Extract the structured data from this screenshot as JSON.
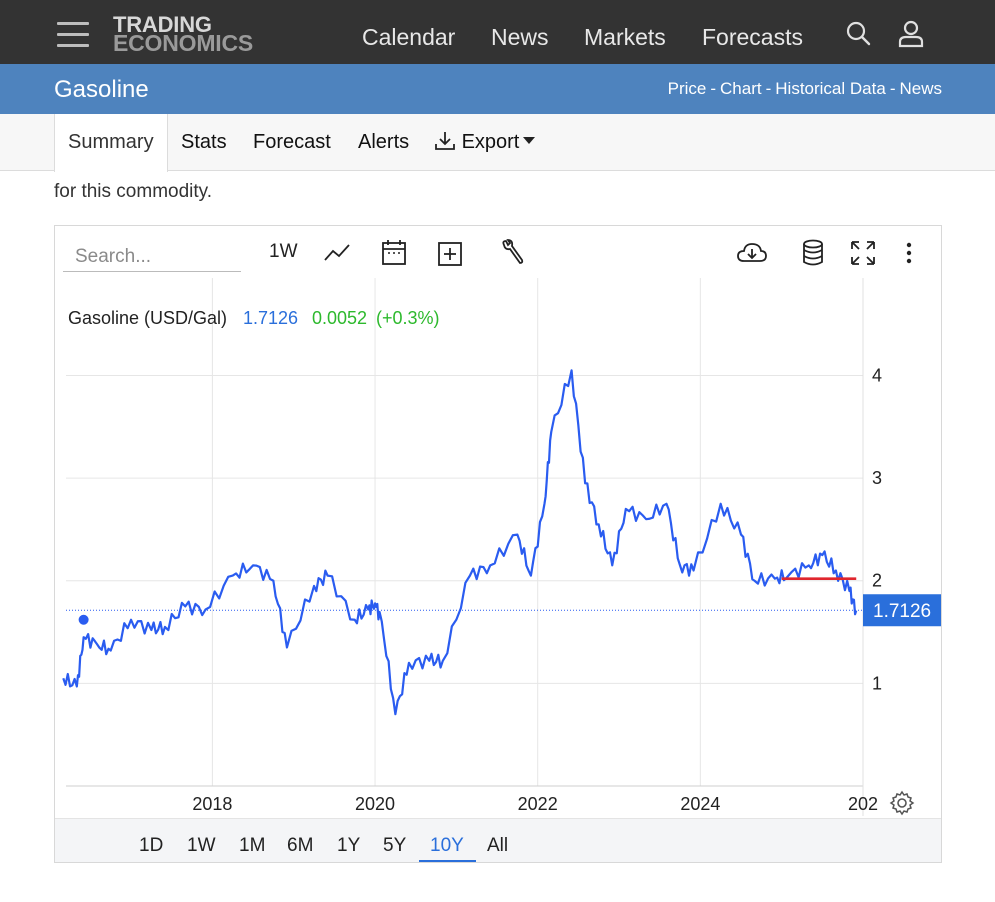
{
  "nav": {
    "logo_line1": "TRADING",
    "logo_line2": "ECONOMICS",
    "links": [
      "Calendar",
      "News",
      "Markets",
      "Forecasts"
    ],
    "icons": [
      "search-icon",
      "user-icon",
      "hamburger-menu-icon"
    ]
  },
  "header": {
    "title": "Gasoline",
    "links": [
      "Price",
      "Chart",
      "Historical Data",
      "News"
    ],
    "separator": "-"
  },
  "tabs": {
    "items": [
      "Summary",
      "Stats",
      "Forecast",
      "Alerts"
    ],
    "active": "Summary",
    "export_label": "Export"
  },
  "intro_text": "for this commodity.",
  "toolbar": {
    "search_placeholder": "Search...",
    "interval_label": "1W",
    "icons": [
      "line-chart-icon",
      "calendar-icon",
      "add-compare-icon",
      "wrench-icon",
      "cloud-download-icon",
      "database-icon",
      "fullscreen-icon",
      "more-vert-icon"
    ]
  },
  "legend": {
    "name": "Gasoline (USD/Gal)",
    "price": "1.7126",
    "change": "0.0052",
    "pct": "(+0.3%)",
    "price_color": "#2a6fdb",
    "change_color": "#2db92d"
  },
  "last_price_label": "1.7126",
  "ranges": {
    "items": [
      "1D",
      "1W",
      "1M",
      "6M",
      "1Y",
      "5Y",
      "10Y",
      "All"
    ],
    "active": "10Y"
  },
  "chart_data": {
    "type": "line",
    "series": [
      {
        "name": "Gasoline (USD/Gal)",
        "color": "#2a5cf0",
        "x": [
          "2016-03",
          "2016-05",
          "2016-06",
          "2016-08",
          "2016-10",
          "2017-01",
          "2017-04",
          "2017-06",
          "2017-09",
          "2017-12",
          "2018-04",
          "2018-07",
          "2018-10",
          "2018-12",
          "2019-04",
          "2019-06",
          "2019-10",
          "2019-12",
          "2020-01",
          "2020-02",
          "2020-04",
          "2020-06",
          "2020-09",
          "2020-11",
          "2021-03",
          "2021-06",
          "2021-10",
          "2021-12",
          "2022-02",
          "2022-03",
          "2022-06",
          "2022-08",
          "2022-10",
          "2022-12",
          "2023-02",
          "2023-05",
          "2023-08",
          "2023-10",
          "2023-12",
          "2024-04",
          "2024-07",
          "2024-09",
          "2024-12",
          "2025-02",
          "2025-05",
          "2025-07",
          "2025-09",
          "2025-11",
          "2025-12"
        ],
        "y": [
          1.05,
          0.97,
          1.45,
          1.38,
          1.32,
          1.62,
          1.52,
          1.55,
          1.75,
          1.72,
          2.05,
          2.15,
          2.0,
          1.35,
          1.95,
          2.05,
          1.62,
          1.72,
          1.78,
          1.6,
          0.7,
          1.2,
          1.22,
          1.22,
          2.05,
          2.15,
          2.45,
          2.05,
          2.75,
          3.45,
          4.05,
          2.95,
          2.55,
          2.15,
          2.7,
          2.6,
          2.75,
          2.15,
          2.1,
          2.75,
          2.45,
          2.0,
          2.02,
          2.05,
          2.15,
          2.25,
          2.1,
          1.9,
          1.71
        ]
      },
      {
        "name": "",
        "color": "#e0262d",
        "x": [
          "2025-01",
          "2025-12"
        ],
        "y": [
          2.02,
          2.02
        ]
      }
    ],
    "marker": {
      "x": "2016-06",
      "y": 1.62
    },
    "last_value": 1.7126,
    "xticks": [
      "2018",
      "2020",
      "2022",
      "2024",
      "202"
    ],
    "yticks": [
      1,
      2,
      3,
      4
    ],
    "ylim": [
      0,
      4.95
    ],
    "grid": true
  }
}
